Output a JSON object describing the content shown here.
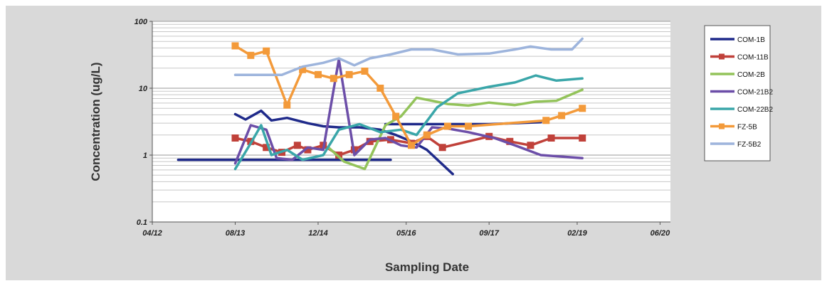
{
  "chart_data": {
    "type": "line",
    "xlabel": "Sampling Date",
    "ylabel": "Concentration (ug/L)",
    "y_scale": "log",
    "ylim": [
      0.1,
      100
    ],
    "y_ticks": [
      {
        "value": 0.1,
        "label": "0.1"
      },
      {
        "value": 1,
        "label": "1"
      },
      {
        "value": 10,
        "label": "10"
      },
      {
        "value": 100,
        "label": "100"
      }
    ],
    "xlim": [
      "2012-04",
      "2020-08"
    ],
    "x_ticks": [
      {
        "value": "2012-04",
        "label": "04/12"
      },
      {
        "value": "2013-08",
        "label": "08/13"
      },
      {
        "value": "2014-12",
        "label": "12/14"
      },
      {
        "value": "2016-05",
        "label": "05/16"
      },
      {
        "value": "2017-09",
        "label": "09/17"
      },
      {
        "value": "2019-02",
        "label": "02/19"
      },
      {
        "value": "2020-06",
        "label": "06/20"
      }
    ],
    "grid": "horizontal",
    "legend_position": "right",
    "series": [
      {
        "name": "COM-1B",
        "color": "#1f2a8a",
        "marker": "none",
        "points": [
          [
            "2013-08",
            4.1
          ],
          [
            "2013-10",
            3.4
          ],
          [
            "2014-01",
            4.6
          ],
          [
            "2014-03",
            3.3
          ],
          [
            "2014-06",
            3.6
          ],
          [
            "2014-10",
            3.0
          ],
          [
            "2015-01",
            2.7
          ],
          [
            "2015-04",
            2.6
          ],
          [
            "2015-08",
            2.6
          ],
          [
            "2015-12",
            2.4
          ],
          [
            "2016-03",
            2.0
          ],
          [
            "2016-06",
            1.6
          ],
          [
            "2016-09",
            1.2
          ],
          [
            "2017-02",
            0.52
          ]
        ]
      },
      {
        "name": "COM-1B",
        "color": "#1f2a8a",
        "marker": "none",
        "points": [
          [
            "2016-01",
            2.9
          ],
          [
            "2017-09",
            2.9
          ],
          [
            "2018-07",
            3.1
          ]
        ]
      },
      {
        "name": "COM-1B",
        "color": "#1f2a8a",
        "marker": "none",
        "points": [
          [
            "2012-09",
            0.85
          ],
          [
            "2016-02",
            0.85
          ]
        ]
      },
      {
        "name": "COM-11B",
        "color": "#c0413a",
        "marker": "square",
        "points": [
          [
            "2013-08",
            1.8
          ],
          [
            "2013-11",
            1.6
          ],
          [
            "2014-02",
            1.3
          ],
          [
            "2014-05",
            1.1
          ],
          [
            "2014-08",
            1.4
          ],
          [
            "2014-10",
            1.2
          ],
          [
            "2015-01",
            1.4
          ],
          [
            "2015-04",
            1.0
          ],
          [
            "2015-07",
            1.2
          ],
          [
            "2015-10",
            1.6
          ],
          [
            "2016-02",
            1.7
          ],
          [
            "2016-06",
            1.5
          ],
          [
            "2016-09",
            1.9
          ],
          [
            "2016-12",
            1.3
          ],
          [
            "2017-09",
            1.9
          ],
          [
            "2018-01",
            1.6
          ],
          [
            "2018-05",
            1.4
          ],
          [
            "2018-09",
            1.8
          ],
          [
            "2019-03",
            1.8
          ]
        ]
      },
      {
        "name": "COM-2B",
        "color": "#93c35a",
        "marker": "none",
        "points": [
          [
            "2015-02",
            1.3
          ],
          [
            "2015-05",
            0.8
          ],
          [
            "2015-09",
            0.62
          ],
          [
            "2016-01",
            2.8
          ],
          [
            "2016-04",
            3.8
          ],
          [
            "2016-07",
            7.2
          ],
          [
            "2016-10",
            6.5
          ],
          [
            "2017-01",
            5.8
          ],
          [
            "2017-05",
            5.5
          ],
          [
            "2017-09",
            6.1
          ],
          [
            "2018-02",
            5.6
          ],
          [
            "2018-06",
            6.3
          ],
          [
            "2018-10",
            6.5
          ],
          [
            "2019-03",
            9.5
          ]
        ]
      },
      {
        "name": "COM-21B2",
        "color": "#6c4ea8",
        "marker": "none",
        "points": [
          [
            "2013-08",
            0.75
          ],
          [
            "2013-11",
            2.8
          ],
          [
            "2014-02",
            2.4
          ],
          [
            "2014-04",
            0.9
          ],
          [
            "2014-07",
            0.85
          ],
          [
            "2014-10",
            1.3
          ],
          [
            "2015-01",
            1.2
          ],
          [
            "2015-04",
            27
          ],
          [
            "2015-07",
            1.0
          ],
          [
            "2015-10",
            1.7
          ],
          [
            "2016-01",
            1.8
          ],
          [
            "2016-04",
            1.4
          ],
          [
            "2016-07",
            1.3
          ],
          [
            "2016-10",
            2.6
          ],
          [
            "2017-01",
            2.5
          ],
          [
            "2017-05",
            2.2
          ],
          [
            "2017-10",
            1.8
          ],
          [
            "2018-02",
            1.4
          ],
          [
            "2018-07",
            1.0
          ],
          [
            "2018-11",
            0.95
          ],
          [
            "2019-03",
            0.9
          ]
        ]
      },
      {
        "name": "COM-22B2",
        "color": "#3aa6a9",
        "marker": "none",
        "points": [
          [
            "2013-08",
            0.62
          ],
          [
            "2013-11",
            1.5
          ],
          [
            "2014-01",
            2.8
          ],
          [
            "2014-03",
            1.0
          ],
          [
            "2014-06",
            1.2
          ],
          [
            "2014-09",
            0.85
          ],
          [
            "2015-01",
            1.0
          ],
          [
            "2015-04",
            2.4
          ],
          [
            "2015-08",
            2.9
          ],
          [
            "2015-12",
            2.2
          ],
          [
            "2016-04",
            2.4
          ],
          [
            "2016-07",
            2.0
          ],
          [
            "2016-11",
            5.2
          ],
          [
            "2017-03",
            8.4
          ],
          [
            "2017-09",
            10.5
          ],
          [
            "2018-02",
            12.2
          ],
          [
            "2018-06",
            15.5
          ],
          [
            "2018-10",
            13.0
          ],
          [
            "2019-03",
            14.0
          ]
        ]
      },
      {
        "name": "FZ-5B",
        "color": "#f39a3a",
        "marker": "square",
        "points": [
          [
            "2013-08",
            43
          ],
          [
            "2013-11",
            31
          ],
          [
            "2014-02",
            36
          ],
          [
            "2014-06",
            5.6
          ],
          [
            "2014-09",
            19
          ],
          [
            "2014-12",
            16
          ],
          [
            "2015-03",
            14
          ],
          [
            "2015-06",
            16
          ],
          [
            "2015-09",
            18
          ],
          [
            "2015-12",
            10
          ],
          [
            "2016-03",
            3.8
          ],
          [
            "2016-06",
            1.4
          ],
          [
            "2016-09",
            2.0
          ],
          [
            "2017-01",
            2.7
          ],
          [
            "2017-05",
            2.7
          ],
          [
            "2018-08",
            3.3
          ],
          [
            "2018-11",
            3.9
          ],
          [
            "2019-03",
            5.0
          ]
        ]
      },
      {
        "name": "FZ-5B2",
        "color": "#9db4dc",
        "marker": "none",
        "points": [
          [
            "2013-08",
            15.8
          ],
          [
            "2014-02",
            15.8
          ],
          [
            "2014-05",
            15.8
          ],
          [
            "2014-09",
            21
          ],
          [
            "2015-01",
            24
          ],
          [
            "2015-04",
            28
          ],
          [
            "2015-07",
            22
          ],
          [
            "2015-10",
            28
          ],
          [
            "2016-02",
            32
          ],
          [
            "2016-06",
            38
          ],
          [
            "2016-10",
            38
          ],
          [
            "2017-03",
            32
          ],
          [
            "2017-09",
            33
          ],
          [
            "2018-02",
            38
          ],
          [
            "2018-05",
            42
          ],
          [
            "2018-09",
            38
          ],
          [
            "2019-01",
            38
          ],
          [
            "2019-03",
            55
          ]
        ]
      }
    ],
    "legend": [
      {
        "name": "COM-1B",
        "color": "#1f2a8a",
        "marker": "none"
      },
      {
        "name": "COM-11B",
        "color": "#c0413a",
        "marker": "square"
      },
      {
        "name": "COM-2B",
        "color": "#93c35a",
        "marker": "none"
      },
      {
        "name": "COM-21B2",
        "color": "#6c4ea8",
        "marker": "none"
      },
      {
        "name": "COM-22B2",
        "color": "#3aa6a9",
        "marker": "none"
      },
      {
        "name": "FZ-5B",
        "color": "#f39a3a",
        "marker": "square"
      },
      {
        "name": "FZ-5B2",
        "color": "#9db4dc",
        "marker": "none"
      }
    ]
  }
}
